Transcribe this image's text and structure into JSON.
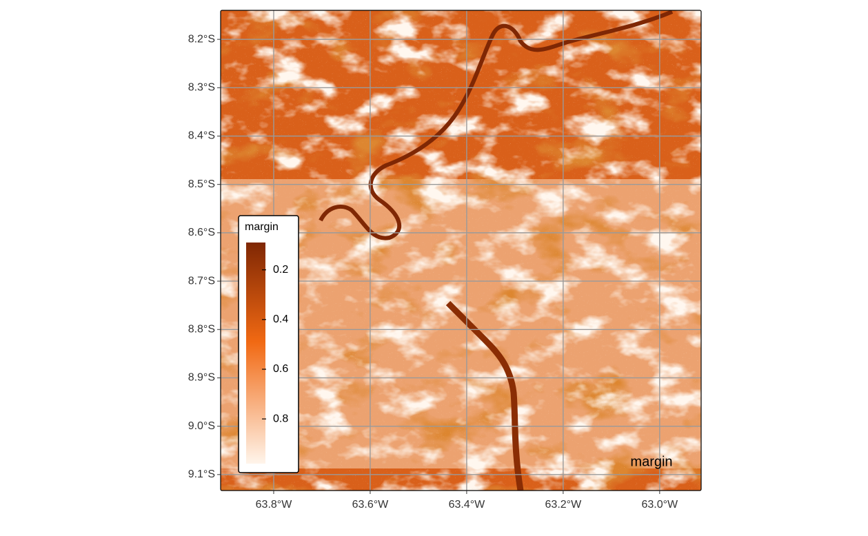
{
  "map_data": {
    "xlim": [
      -63.91,
      -62.914
    ],
    "ylim": [
      -9.133,
      -8.14
    ],
    "xticks": [
      {
        "value": -63.8,
        "label": "63.8°W"
      },
      {
        "value": -63.6,
        "label": "63.6°W"
      },
      {
        "value": -63.4,
        "label": "63.4°W"
      },
      {
        "value": -63.2,
        "label": "63.2°W"
      },
      {
        "value": -63.0,
        "label": "63.0°W"
      }
    ],
    "yticks": [
      {
        "value": -8.2,
        "label": "8.2°S"
      },
      {
        "value": -8.3,
        "label": "8.3°S"
      },
      {
        "value": -8.4,
        "label": "8.4°S"
      },
      {
        "value": -8.5,
        "label": "8.5°S"
      },
      {
        "value": -8.6,
        "label": "8.6°S"
      },
      {
        "value": -8.7,
        "label": "8.7°S"
      },
      {
        "value": -8.8,
        "label": "8.8°S"
      },
      {
        "value": -8.9,
        "label": "8.9°S"
      },
      {
        "value": -9.0,
        "label": "9.0°S"
      },
      {
        "value": -9.1,
        "label": "9.1°S"
      }
    ],
    "grid": true,
    "panel_label": "margin",
    "legend": {
      "title": "margin",
      "position": "bottom-left",
      "range": [
        0.09,
        0.98
      ],
      "colors": [
        "#7f2704",
        "#fff5eb"
      ],
      "ticks": [
        0.2,
        0.4,
        0.6,
        0.8
      ]
    }
  }
}
